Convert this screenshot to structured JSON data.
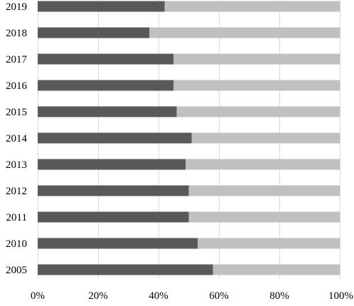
{
  "chart_data": {
    "type": "bar",
    "orientation": "horizontal",
    "stacked": "percent",
    "categories": [
      "2019",
      "2018",
      "2017",
      "2016",
      "2015",
      "2014",
      "2013",
      "2012",
      "2011",
      "2010",
      "2005"
    ],
    "series": [
      {
        "values": [
          42,
          37,
          45,
          45,
          46,
          51,
          49,
          50,
          50,
          53,
          58
        ],
        "color": "#595959"
      },
      {
        "values": [
          58,
          63,
          55,
          55,
          54,
          49,
          51,
          50,
          50,
          47,
          42
        ],
        "color": "#c0c0c0"
      }
    ],
    "xlim": [
      0,
      100
    ],
    "x_ticks": [
      0,
      20,
      40,
      60,
      80,
      100
    ],
    "x_tick_labels": [
      "0%",
      "20%",
      "40%",
      "60%",
      "80%",
      "100%"
    ],
    "grid": "vertical",
    "legend": "none",
    "title": "",
    "xlabel": "",
    "ylabel": ""
  }
}
